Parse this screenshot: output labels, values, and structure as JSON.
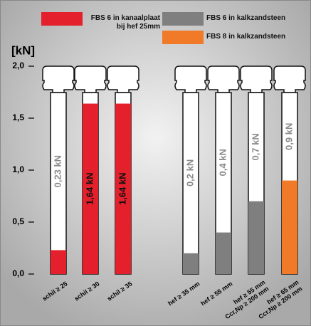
{
  "chart_data": {
    "type": "screw-bar",
    "y_label": "[kN]",
    "categories": [
      "schil ≥ 25",
      "schil ≥ 30",
      "schil ≥ 35",
      "hef ≥ 35 mm",
      "hef ≥ 55 mm",
      "hef ≥ 55 mm",
      "hef ≥ 65 mm"
    ],
    "category_notes": [
      null,
      null,
      null,
      null,
      null,
      "Ccr,Np ≥ 200 mm",
      "Ccr,Np ≥ 200 mm"
    ],
    "series": [
      {
        "name": "FBS 6 in kanaalplaat bij hef 25mm",
        "color": "#e3202c",
        "values": [
          0.23,
          1.64,
          1.64,
          null,
          null,
          null,
          null
        ],
        "value_labels": [
          "0,23 kN",
          "1,64 kN",
          "1,64 kN",
          null,
          null,
          null,
          null
        ]
      },
      {
        "name": "FBS 6 in kalkzandsteen",
        "color": "#7f7f7f",
        "values": [
          null,
          null,
          null,
          0.2,
          0.4,
          0.7,
          null
        ],
        "value_labels": [
          null,
          null,
          null,
          "0,2 kN",
          "0,4 kN",
          "0,7 kN",
          null
        ]
      },
      {
        "name": "FBS 8 in kalkzandsteen",
        "color": "#f07a28",
        "values": [
          null,
          null,
          null,
          null,
          null,
          null,
          0.9
        ],
        "value_labels": [
          null,
          null,
          null,
          null,
          null,
          null,
          "0,9 kN"
        ]
      }
    ],
    "ylim": [
      0,
      2
    ],
    "yticks": [
      {
        "value": 0,
        "label": "0,0"
      },
      {
        "value": 0.5,
        "label": "0,5"
      },
      {
        "value": 1,
        "label": "1,0"
      },
      {
        "value": 1.5,
        "label": "1,5"
      },
      {
        "value": 2,
        "label": "2,0"
      }
    ]
  }
}
